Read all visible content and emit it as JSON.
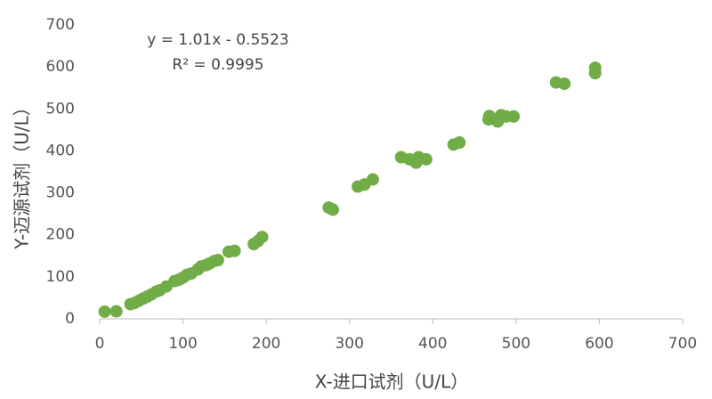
{
  "chart_data": {
    "type": "scatter",
    "x_label": "X-进口试剂（U/L）",
    "y_label": "Y-迈源试剂（U/L）",
    "annotations": [
      "y = 1.01x - 0.5523",
      "R² = 0.9995"
    ],
    "color": "#70ad47",
    "x": [
      6,
      20,
      37,
      42,
      47,
      52,
      57,
      62,
      68,
      72,
      80,
      90,
      95,
      100,
      105,
      110,
      118,
      122,
      128,
      132,
      138,
      142,
      155,
      162,
      185,
      190,
      195,
      275,
      280,
      310,
      318,
      328,
      362,
      372,
      380,
      383,
      392,
      425,
      432,
      467,
      468,
      478,
      482,
      488,
      497,
      548,
      558,
      595,
      595
    ],
    "values": [
      17,
      18,
      35,
      38,
      43,
      48,
      53,
      58,
      65,
      68,
      77,
      90,
      93,
      98,
      105,
      108,
      118,
      125,
      128,
      132,
      138,
      140,
      160,
      162,
      178,
      185,
      195,
      265,
      260,
      315,
      320,
      332,
      385,
      380,
      372,
      385,
      380,
      415,
      420,
      475,
      483,
      470,
      485,
      482,
      482,
      563,
      560,
      585,
      598
    ],
    "xlim": [
      0,
      700
    ],
    "xticks": [
      0,
      100,
      200,
      300,
      400,
      500,
      600,
      700
    ],
    "ylim": [
      0,
      700
    ],
    "yticks": [
      0,
      100,
      200,
      300,
      400,
      500,
      600,
      700
    ]
  }
}
